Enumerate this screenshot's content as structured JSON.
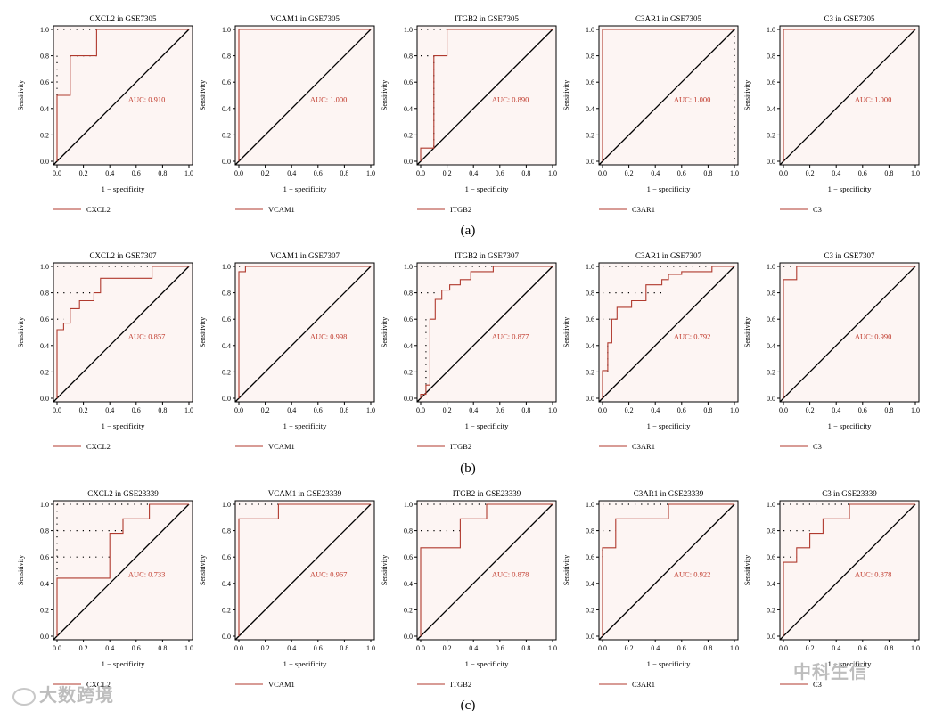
{
  "colors": {
    "roc": "#b03a2e",
    "auc_text": "#c0392b",
    "fill": "#fdf5f3",
    "diag": "#000000"
  },
  "axis_labels": {
    "x": "1 − specificity",
    "y": "Sensitivity"
  },
  "ticks": [
    "0.0",
    "0.2",
    "0.4",
    "0.6",
    "0.8",
    "1.0"
  ],
  "chart_data": [
    {
      "label": "(a)",
      "panels": [
        {
          "type": "line",
          "title": "CXCL2 in GSE7305",
          "gene": "CXCL2",
          "auc": "AUC: 0.910",
          "xlim": [
            0,
            1
          ],
          "ylim": [
            0,
            1
          ],
          "x": [
            0,
            0,
            0.1,
            0.1,
            0.3,
            0.3,
            1
          ],
          "y": [
            0,
            0.5,
            0.5,
            0.8,
            0.8,
            1,
            1
          ],
          "dotted": [
            [
              [
                0,
                1
              ],
              [
                0.3,
                1
              ]
            ],
            [
              [
                0.1,
                0.8
              ],
              [
                0.3,
                0.8
              ]
            ],
            [
              [
                0,
                0.8
              ],
              [
                0,
                0.5
              ]
            ]
          ]
        },
        {
          "type": "line",
          "title": "VCAM1 in GSE7305",
          "gene": "VCAM1",
          "auc": "AUC: 1.000",
          "xlim": [
            0,
            1
          ],
          "ylim": [
            0,
            1
          ],
          "x": [
            0,
            0,
            1
          ],
          "y": [
            0,
            1,
            1
          ],
          "dotted": []
        },
        {
          "type": "line",
          "title": "ITGB2 in GSE7305",
          "gene": "ITGB2",
          "auc": "AUC: 0.890",
          "xlim": [
            0,
            1
          ],
          "ylim": [
            0,
            1
          ],
          "x": [
            0,
            0,
            0.1,
            0.1,
            0.2,
            0.2,
            1
          ],
          "y": [
            0,
            0.1,
            0.1,
            0.8,
            0.8,
            1,
            1
          ],
          "dotted": [
            [
              [
                0,
                1
              ],
              [
                0.2,
                1
              ]
            ],
            [
              [
                0,
                0.8
              ],
              [
                0.1,
                0.8
              ]
            ],
            [
              [
                0.1,
                0.8
              ],
              [
                0.1,
                0.1
              ]
            ]
          ]
        },
        {
          "type": "line",
          "title": "C3AR1 in GSE7305",
          "gene": "C3AR1",
          "auc": "AUC: 1.000",
          "xlim": [
            0,
            1
          ],
          "ylim": [
            0,
            1
          ],
          "x": [
            0,
            0,
            1
          ],
          "y": [
            0,
            1,
            1
          ],
          "dotted": [
            [
              [
                1,
                1
              ],
              [
                1,
                0
              ]
            ]
          ]
        },
        {
          "type": "line",
          "title": "C3 in GSE7305",
          "gene": "C3",
          "auc": "AUC: 1.000",
          "xlim": [
            0,
            1
          ],
          "ylim": [
            0,
            1
          ],
          "x": [
            0,
            0,
            1
          ],
          "y": [
            0,
            1,
            1
          ],
          "dotted": []
        }
      ]
    },
    {
      "label": "(b)",
      "panels": [
        {
          "type": "line",
          "title": "CXCL2 in GSE7307",
          "gene": "CXCL2",
          "auc": "AUC: 0.857",
          "xlim": [
            0,
            1
          ],
          "ylim": [
            0,
            1
          ],
          "x": [
            0,
            0,
            0.05,
            0.05,
            0.1,
            0.1,
            0.17,
            0.17,
            0.28,
            0.28,
            0.33,
            0.33,
            0.72,
            0.72,
            1
          ],
          "y": [
            0,
            0.52,
            0.52,
            0.57,
            0.57,
            0.68,
            0.68,
            0.74,
            0.74,
            0.8,
            0.8,
            0.91,
            0.91,
            1,
            1
          ],
          "dotted": [
            [
              [
                0,
                1
              ],
              [
                0.72,
                1
              ]
            ],
            [
              [
                0,
                0.8
              ],
              [
                0.28,
                0.8
              ]
            ],
            [
              [
                0,
                0.6
              ],
              [
                0.05,
                0.6
              ]
            ]
          ]
        },
        {
          "type": "line",
          "title": "VCAM1 in GSE7307",
          "gene": "VCAM1",
          "auc": "AUC: 0.998",
          "xlim": [
            0,
            1
          ],
          "ylim": [
            0,
            1
          ],
          "x": [
            0,
            0,
            0.05,
            0.05,
            1
          ],
          "y": [
            0,
            0.96,
            0.96,
            1,
            1
          ],
          "dotted": [
            [
              [
                0,
                1
              ],
              [
                0.05,
                1
              ]
            ]
          ]
        },
        {
          "type": "line",
          "title": "ITGB2 in GSE7307",
          "gene": "ITGB2",
          "auc": "AUC: 0.877",
          "xlim": [
            0,
            1
          ],
          "ylim": [
            0,
            1
          ],
          "x": [
            0,
            0,
            0.04,
            0.04,
            0.07,
            0.07,
            0.11,
            0.11,
            0.16,
            0.16,
            0.22,
            0.22,
            0.3,
            0.3,
            0.38,
            0.38,
            0.55,
            0.55,
            1
          ],
          "y": [
            0,
            0.03,
            0.03,
            0.1,
            0.1,
            0.6,
            0.6,
            0.75,
            0.75,
            0.82,
            0.82,
            0.86,
            0.86,
            0.9,
            0.9,
            0.96,
            0.96,
            1,
            1
          ],
          "dotted": [
            [
              [
                0,
                1
              ],
              [
                0.55,
                1
              ]
            ],
            [
              [
                0,
                0.8
              ],
              [
                0.11,
                0.8
              ]
            ],
            [
              [
                0.04,
                0.6
              ],
              [
                0.04,
                0.1
              ]
            ]
          ]
        },
        {
          "type": "line",
          "title": "C3AR1 in GSE7307",
          "gene": "C3AR1",
          "auc": "AUC: 0.792",
          "xlim": [
            0,
            1
          ],
          "ylim": [
            0,
            1
          ],
          "x": [
            0,
            0,
            0.04,
            0.04,
            0.07,
            0.07,
            0.11,
            0.11,
            0.22,
            0.22,
            0.33,
            0.33,
            0.45,
            0.45,
            0.5,
            0.5,
            0.6,
            0.6,
            0.83,
            0.83,
            1
          ],
          "y": [
            0,
            0.21,
            0.21,
            0.42,
            0.42,
            0.6,
            0.6,
            0.69,
            0.69,
            0.74,
            0.74,
            0.86,
            0.86,
            0.9,
            0.9,
            0.94,
            0.94,
            0.96,
            0.96,
            1,
            1
          ],
          "dotted": [
            [
              [
                0,
                1
              ],
              [
                0.83,
                1
              ]
            ],
            [
              [
                0,
                0.8
              ],
              [
                0.45,
                0.8
              ]
            ],
            [
              [
                0,
                0.6
              ],
              [
                0.11,
                0.6
              ]
            ],
            [
              [
                0.04,
                0.4
              ],
              [
                0.04,
                0.2
              ]
            ]
          ]
        },
        {
          "type": "line",
          "title": "C3 in GSE7307",
          "gene": "C3",
          "auc": "AUC: 0.990",
          "xlim": [
            0,
            1
          ],
          "ylim": [
            0,
            1
          ],
          "x": [
            0,
            0,
            0.1,
            0.1,
            1
          ],
          "y": [
            0,
            0.9,
            0.9,
            1,
            1
          ],
          "dotted": [
            [
              [
                0,
                1
              ],
              [
                0.1,
                1
              ]
            ]
          ]
        }
      ]
    },
    {
      "label": "(c)",
      "panels": [
        {
          "type": "line",
          "title": "CXCL2 in GSE23339",
          "gene": "CXCL2",
          "auc": "AUC: 0.733",
          "xlim": [
            0,
            1
          ],
          "ylim": [
            0,
            1
          ],
          "x": [
            0,
            0,
            0.4,
            0.4,
            0.5,
            0.5,
            0.7,
            0.7,
            1
          ],
          "y": [
            0,
            0.44,
            0.44,
            0.78,
            0.78,
            0.89,
            0.89,
            1,
            1
          ],
          "dotted": [
            [
              [
                0,
                1
              ],
              [
                0.7,
                1
              ]
            ],
            [
              [
                0,
                0.8
              ],
              [
                0.5,
                0.8
              ]
            ],
            [
              [
                0,
                0.6
              ],
              [
                0.4,
                0.6
              ]
            ],
            [
              [
                0,
                1
              ],
              [
                0,
                0.44
              ]
            ]
          ]
        },
        {
          "type": "line",
          "title": "VCAM1 in GSE23339",
          "gene": "VCAM1",
          "auc": "AUC: 0.967",
          "xlim": [
            0,
            1
          ],
          "ylim": [
            0,
            1
          ],
          "x": [
            0,
            0,
            0.3,
            0.3,
            1
          ],
          "y": [
            0,
            0.89,
            0.89,
            1,
            1
          ],
          "dotted": [
            [
              [
                0,
                1
              ],
              [
                0.3,
                1
              ]
            ]
          ]
        },
        {
          "type": "line",
          "title": "ITGB2 in GSE23339",
          "gene": "ITGB2",
          "auc": "AUC: 0.878",
          "xlim": [
            0,
            1
          ],
          "ylim": [
            0,
            1
          ],
          "x": [
            0,
            0,
            0.3,
            0.3,
            0.5,
            0.5,
            0.7,
            0.7,
            1
          ],
          "y": [
            0,
            0.67,
            0.67,
            0.89,
            0.89,
            1,
            1,
            1,
            1
          ],
          "dotted": [
            [
              [
                0,
                1
              ],
              [
                0.5,
                1
              ]
            ],
            [
              [
                0,
                0.8
              ],
              [
                0.3,
                0.8
              ]
            ]
          ]
        },
        {
          "type": "line",
          "title": "C3AR1 in GSE23339",
          "gene": "C3AR1",
          "auc": "AUC: 0.922",
          "xlim": [
            0,
            1
          ],
          "ylim": [
            0,
            1
          ],
          "x": [
            0,
            0,
            0.1,
            0.1,
            0.5,
            0.5,
            1
          ],
          "y": [
            0,
            0.67,
            0.67,
            0.89,
            0.89,
            1,
            1
          ],
          "dotted": [
            [
              [
                0,
                1
              ],
              [
                0.5,
                1
              ]
            ],
            [
              [
                0,
                0.8
              ],
              [
                0.1,
                0.8
              ]
            ],
            [
              [
                0,
                0.6
              ],
              [
                0,
                0.67
              ]
            ]
          ]
        },
        {
          "type": "line",
          "title": "C3 in GSE23339",
          "gene": "C3",
          "auc": "AUC: 0.878",
          "xlim": [
            0,
            1
          ],
          "ylim": [
            0,
            1
          ],
          "x": [
            0,
            0,
            0.1,
            0.1,
            0.2,
            0.2,
            0.3,
            0.3,
            0.5,
            0.5,
            1
          ],
          "y": [
            0,
            0.56,
            0.56,
            0.67,
            0.67,
            0.78,
            0.78,
            0.89,
            0.89,
            1,
            1
          ],
          "dotted": [
            [
              [
                0,
                1
              ],
              [
                0.5,
                1
              ]
            ],
            [
              [
                0,
                0.8
              ],
              [
                0.2,
                0.8
              ]
            ],
            [
              [
                0,
                0.6
              ],
              [
                0.1,
                0.6
              ]
            ]
          ]
        }
      ]
    }
  ],
  "watermarks": {
    "left": "大数跨境",
    "right": "中科生信"
  }
}
